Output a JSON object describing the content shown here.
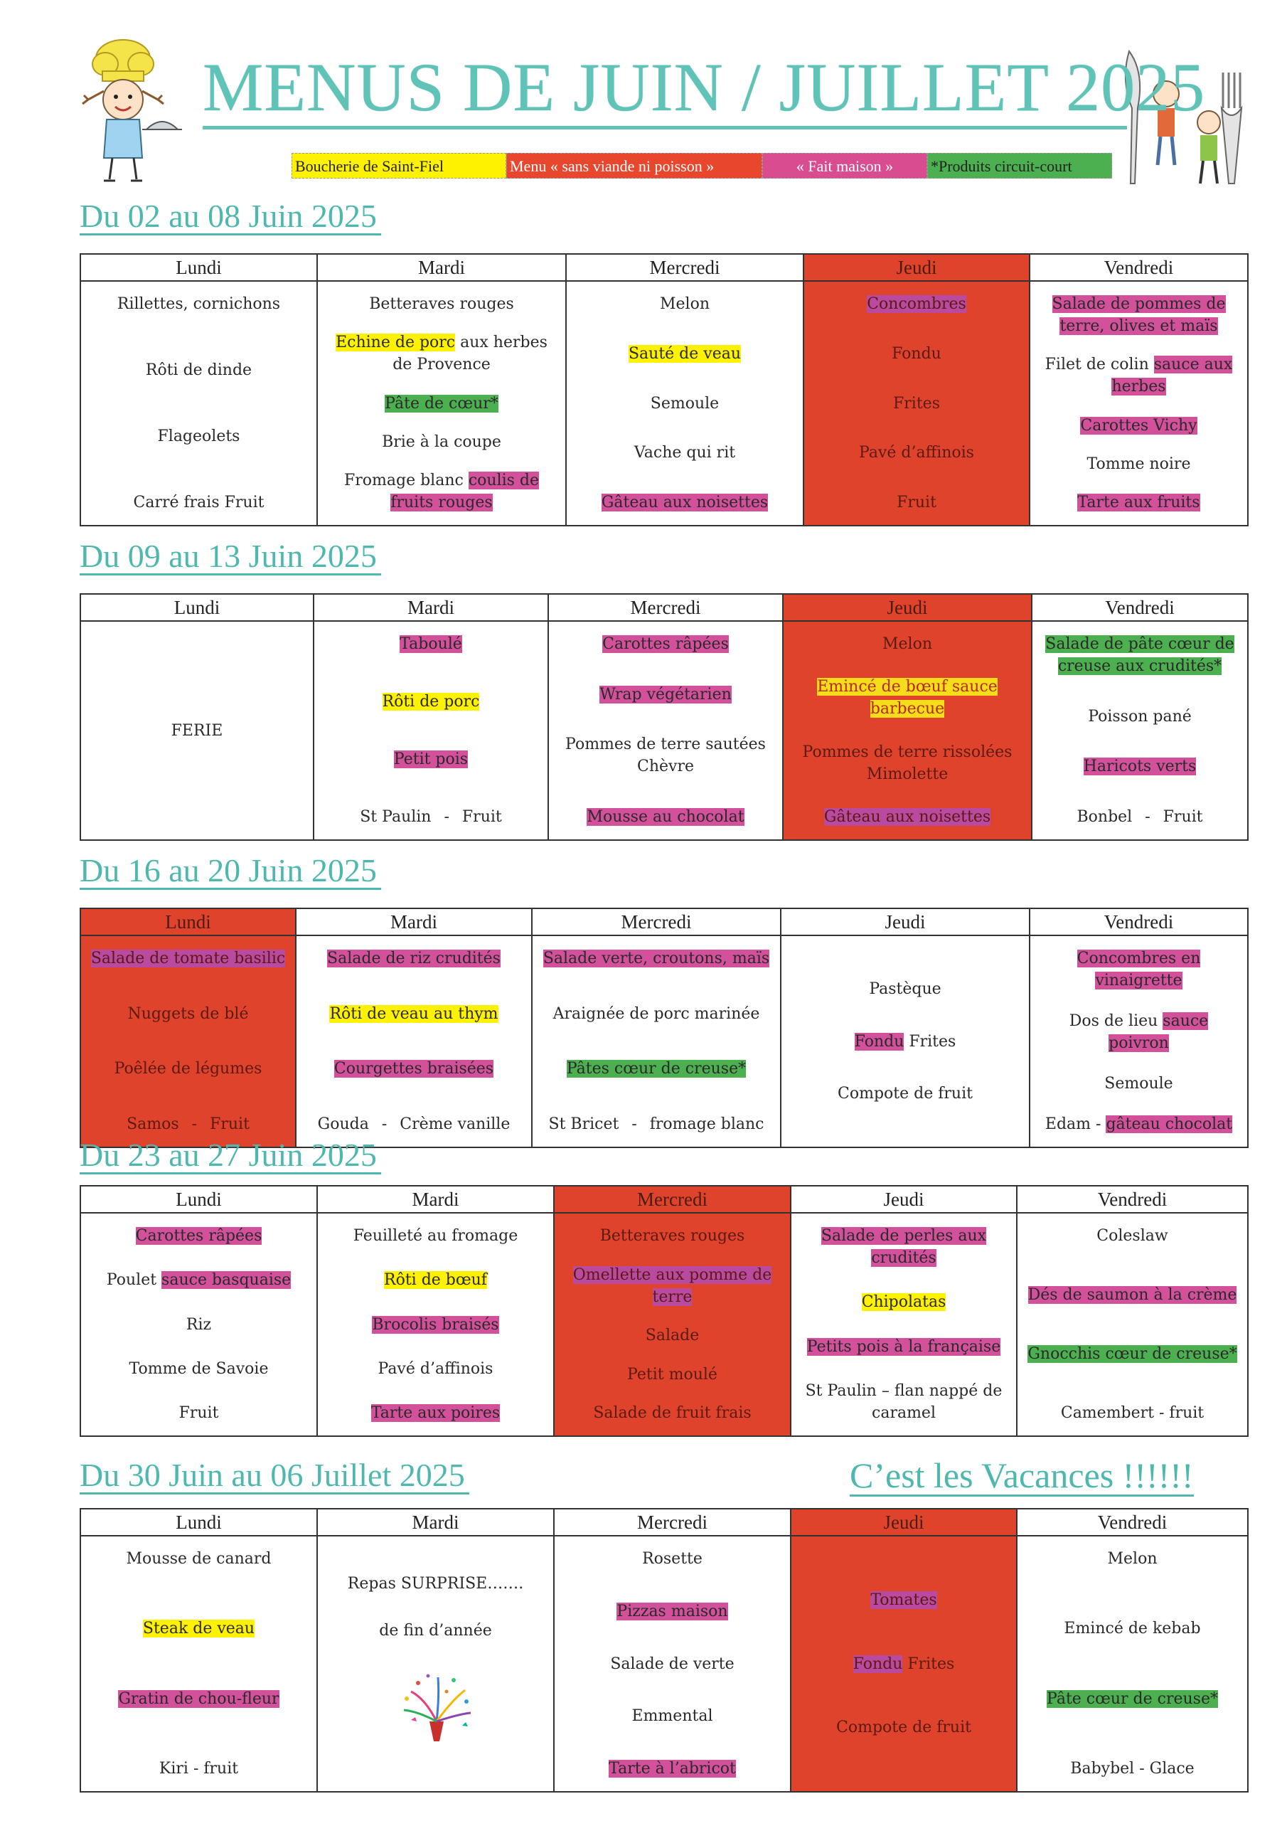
{
  "title": "MENUS DE JUIN / JUILLET 2025",
  "legend": [
    {
      "label": "Boucherie de Saint-Fiel",
      "color": "#fff200"
    },
    {
      "label": "Menu « sans viande ni poisson »",
      "color": "#e8472e"
    },
    {
      "label": "« Fait maison »",
      "color": "#d94c8f"
    },
    {
      "label": "*Produits circuit-court",
      "color": "#4caf50"
    }
  ],
  "days": [
    "Lundi",
    "Mardi",
    "Mercredi",
    "Jeudi",
    "Vendredi"
  ],
  "vacances": "C’est les Vacances !!!!!!",
  "weeks": [
    {
      "title": "Du 02 au 08 Juin 2025",
      "red_day": 3,
      "cols": [
        [
          {
            "text": "Rillettes, cornichons"
          },
          {
            "text": "Rôti de dinde"
          },
          {
            "text": "Flageolets"
          },
          {
            "text": "Carré frais    Fruit"
          }
        ],
        [
          {
            "text": "Betteraves rouges"
          },
          {
            "parts": [
              {
                "text": "Echine de porc",
                "hl": "y"
              },
              {
                "text": " aux herbes de Provence"
              }
            ]
          },
          {
            "text": "Pâte de cœur*",
            "hl": "g"
          },
          {
            "text": "Brie à la coupe"
          },
          {
            "parts": [
              {
                "text": "Fromage blanc "
              },
              {
                "text": "coulis de fruits rouges",
                "hl": "p"
              }
            ]
          }
        ],
        [
          {
            "text": "Melon"
          },
          {
            "text": "Sauté de veau",
            "hl": "y"
          },
          {
            "text": "Semoule"
          },
          {
            "text": "Vache qui rit"
          },
          {
            "text": "Gâteau aux noisettes",
            "hl": "p"
          }
        ],
        [
          {
            "text": "Concombres",
            "hl": "p"
          },
          {
            "text": "Fondu"
          },
          {
            "text": "Frites"
          },
          {
            "text": "Pavé d’affinois"
          },
          {
            "text": "Fruit"
          }
        ],
        [
          {
            "text": "Salade de pommes de terre, olives et maïs",
            "hl": "p"
          },
          {
            "parts": [
              {
                "text": "Filet de colin "
              },
              {
                "text": "sauce aux herbes",
                "hl": "p"
              }
            ]
          },
          {
            "text": "Carottes Vichy",
            "hl": "p"
          },
          {
            "text": "Tomme noire"
          },
          {
            "text": "Tarte aux fruits",
            "hl": "p"
          }
        ]
      ]
    },
    {
      "title": "Du 09 au 13 Juin 2025",
      "red_day": 3,
      "cols": [
        [
          {
            "text": "FERIE"
          }
        ],
        [
          {
            "text": "Taboulé",
            "hl": "p"
          },
          {
            "text": "Rôti de porc",
            "hl": "y"
          },
          {
            "text": "Petit pois",
            "hl": "p"
          },
          {
            "parts": [
              {
                "text": "St Paulin"
              },
              {
                "text": "-",
                "dash": true
              },
              {
                "text": "Fruit"
              }
            ]
          }
        ],
        [
          {
            "text": "Carottes râpées",
            "hl": "p"
          },
          {
            "text": "Wrap végétarien",
            "hl": "p"
          },
          {
            "text": "Pommes de terre sautées Chèvre"
          },
          {
            "text": "Mousse au chocolat",
            "hl": "p"
          }
        ],
        [
          {
            "text": "Melon"
          },
          {
            "text": "Emincé de bœuf sauce barbecue",
            "hl": "y"
          },
          {
            "text": "Pommes de terre rissolées Mimolette"
          },
          {
            "text": "Gâteau aux noisettes",
            "hl": "p"
          }
        ],
        [
          {
            "text": "Salade de pâte cœur de creuse aux crudités*",
            "hl": "g"
          },
          {
            "text": "Poisson pané"
          },
          {
            "text": "Haricots verts",
            "hl": "p"
          },
          {
            "parts": [
              {
                "text": "Bonbel"
              },
              {
                "text": "-",
                "dash": true
              },
              {
                "text": "Fruit"
              }
            ]
          }
        ]
      ]
    },
    {
      "title": "Du 16 au 20 Juin 2025",
      "red_day": 0,
      "cols": [
        [
          {
            "text": "Salade de tomate basilic",
            "hl": "p"
          },
          {
            "text": "Nuggets de blé"
          },
          {
            "text": "Poêlée de légumes"
          },
          {
            "parts": [
              {
                "text": "Samos"
              },
              {
                "text": "-",
                "dash": true
              },
              {
                "text": "Fruit"
              }
            ]
          }
        ],
        [
          {
            "text": "Salade de riz crudités",
            "hl": "p"
          },
          {
            "text": "Rôti de veau au thym",
            "hl": "y"
          },
          {
            "text": "Courgettes braisées",
            "hl": "p"
          },
          {
            "parts": [
              {
                "text": "Gouda"
              },
              {
                "text": "-",
                "dash": true
              },
              {
                "text": "Crème vanille"
              }
            ]
          }
        ],
        [
          {
            "text": "Salade verte, croutons, maïs",
            "hl": "p"
          },
          {
            "text": "Araignée de porc marinée"
          },
          {
            "text": "Pâtes cœur de creuse*",
            "hl": "g"
          },
          {
            "parts": [
              {
                "text": "St Bricet"
              },
              {
                "text": "-",
                "dash": true
              },
              {
                "text": "fromage blanc"
              }
            ]
          }
        ],
        [
          {
            "text": "Pastèque"
          },
          {
            "parts": [
              {
                "text": "Fondu",
                "hl": "p"
              },
              {
                "text": "   Frites"
              }
            ]
          },
          {
            "text": "Compote de fruit"
          }
        ],
        [
          {
            "text": "Concombres en vinaigrette",
            "hl": "p"
          },
          {
            "parts": [
              {
                "text": "Dos de lieu "
              },
              {
                "text": "sauce poivron",
                "hl": "p"
              }
            ]
          },
          {
            "text": "Semoule"
          },
          {
            "parts": [
              {
                "text": "Edam -  "
              },
              {
                "text": "gâteau chocolat",
                "hl": "p"
              }
            ]
          }
        ]
      ]
    },
    {
      "title": "Du 23 au 27 Juin 2025",
      "red_day": 2,
      "cols": [
        [
          {
            "text": "Carottes râpées",
            "hl": "p"
          },
          {
            "parts": [
              {
                "text": "Poulet "
              },
              {
                "text": "sauce basquaise",
                "hl": "p"
              }
            ]
          },
          {
            "text": "Riz"
          },
          {
            "text": "Tomme de Savoie"
          },
          {
            "text": "Fruit"
          }
        ],
        [
          {
            "text": "Feuilleté au fromage"
          },
          {
            "text": "Rôti de bœuf",
            "hl": "y"
          },
          {
            "text": "Brocolis braisés",
            "hl": "p"
          },
          {
            "text": "Pavé d’affinois"
          },
          {
            "text": "Tarte aux poires",
            "hl": "p"
          }
        ],
        [
          {
            "text": "Betteraves rouges"
          },
          {
            "text": "Omellette aux pomme de terre",
            "hl": "p"
          },
          {
            "text": "Salade"
          },
          {
            "text": "Petit moulé"
          },
          {
            "text": "Salade de fruit frais"
          }
        ],
        [
          {
            "text": "Salade de perles aux crudités",
            "hl": "p"
          },
          {
            "text": "Chipolatas",
            "hl": "y"
          },
          {
            "text": "Petits pois à la française",
            "hl": "p"
          },
          {
            "text": "St Paulin – flan nappé de caramel"
          }
        ],
        [
          {
            "text": "Coleslaw"
          },
          {
            "text": "Dés de saumon à la crème",
            "hl": "p"
          },
          {
            "text": "Gnocchis cœur de creuse*",
            "hl": "g"
          },
          {
            "text": "Camembert -  fruit"
          }
        ]
      ]
    },
    {
      "title": "Du 30 Juin au 06 Juillet 2025",
      "red_day": 3,
      "cols": [
        [
          {
            "text": "Mousse de canard"
          },
          {
            "text": "Steak de veau",
            "hl": "y"
          },
          {
            "text": "Gratin de chou-fleur",
            "hl": "p"
          },
          {
            "text": "Kiri - fruit"
          }
        ],
        [
          {
            "text": "Repas  SURPRISE……."
          },
          {
            "text": "de fin d’année"
          },
          {
            "confetti": true
          }
        ],
        [
          {
            "text": "Rosette"
          },
          {
            "text": "Pizzas maison",
            "hl": "p"
          },
          {
            "text": "Salade de verte"
          },
          {
            "text": "Emmental"
          },
          {
            "text": "Tarte à l’abricot",
            "hl": "p"
          }
        ],
        [
          {
            "text": "Tomates",
            "hl": "p"
          },
          {
            "parts": [
              {
                "text": "Fondu",
                "hl": "p"
              },
              {
                "text": "   Frites"
              }
            ]
          },
          {
            "text": "Compote de fruit"
          }
        ],
        [
          {
            "text": "Melon"
          },
          {
            "text": "Emincé de kebab"
          },
          {
            "text": "Pâte cœur de creuse*",
            "hl": "g"
          },
          {
            "text": "Babybel -  Glace"
          }
        ]
      ]
    }
  ]
}
